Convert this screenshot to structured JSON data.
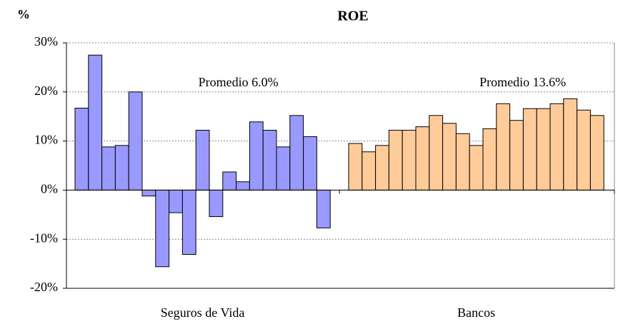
{
  "chart_data": {
    "type": "grouped-bar",
    "title": "ROE",
    "y_label": "%",
    "ylim": [
      -20,
      30
    ],
    "yticks": [
      {
        "value": -20,
        "label": "-20%"
      },
      {
        "value": -10,
        "label": "-10%"
      },
      {
        "value": 0,
        "label": "0%"
      },
      {
        "value": 10,
        "label": "10%"
      },
      {
        "value": 20,
        "label": "20%"
      },
      {
        "value": 30,
        "label": "30%"
      }
    ],
    "grid": true,
    "series": [
      {
        "name": "Seguros de Vida",
        "color": "#9999ff",
        "annotation": "Promedio 6.0%",
        "values": [
          16.7,
          27.5,
          8.8,
          9.1,
          20.0,
          -1.2,
          -15.6,
          -4.6,
          -13.1,
          12.2,
          -5.4,
          3.7,
          1.7,
          13.9,
          12.2,
          8.8,
          15.2,
          10.9,
          -7.7
        ]
      },
      {
        "name": "Bancos",
        "color": "#ffcc99",
        "annotation": "Promedio 13.6%",
        "values": [
          9.5,
          7.8,
          9.1,
          12.2,
          12.2,
          12.9,
          15.2,
          13.6,
          11.5,
          9.1,
          12.5,
          17.6,
          14.2,
          16.6,
          16.6,
          17.6,
          18.6,
          16.3,
          15.2
        ]
      }
    ]
  }
}
